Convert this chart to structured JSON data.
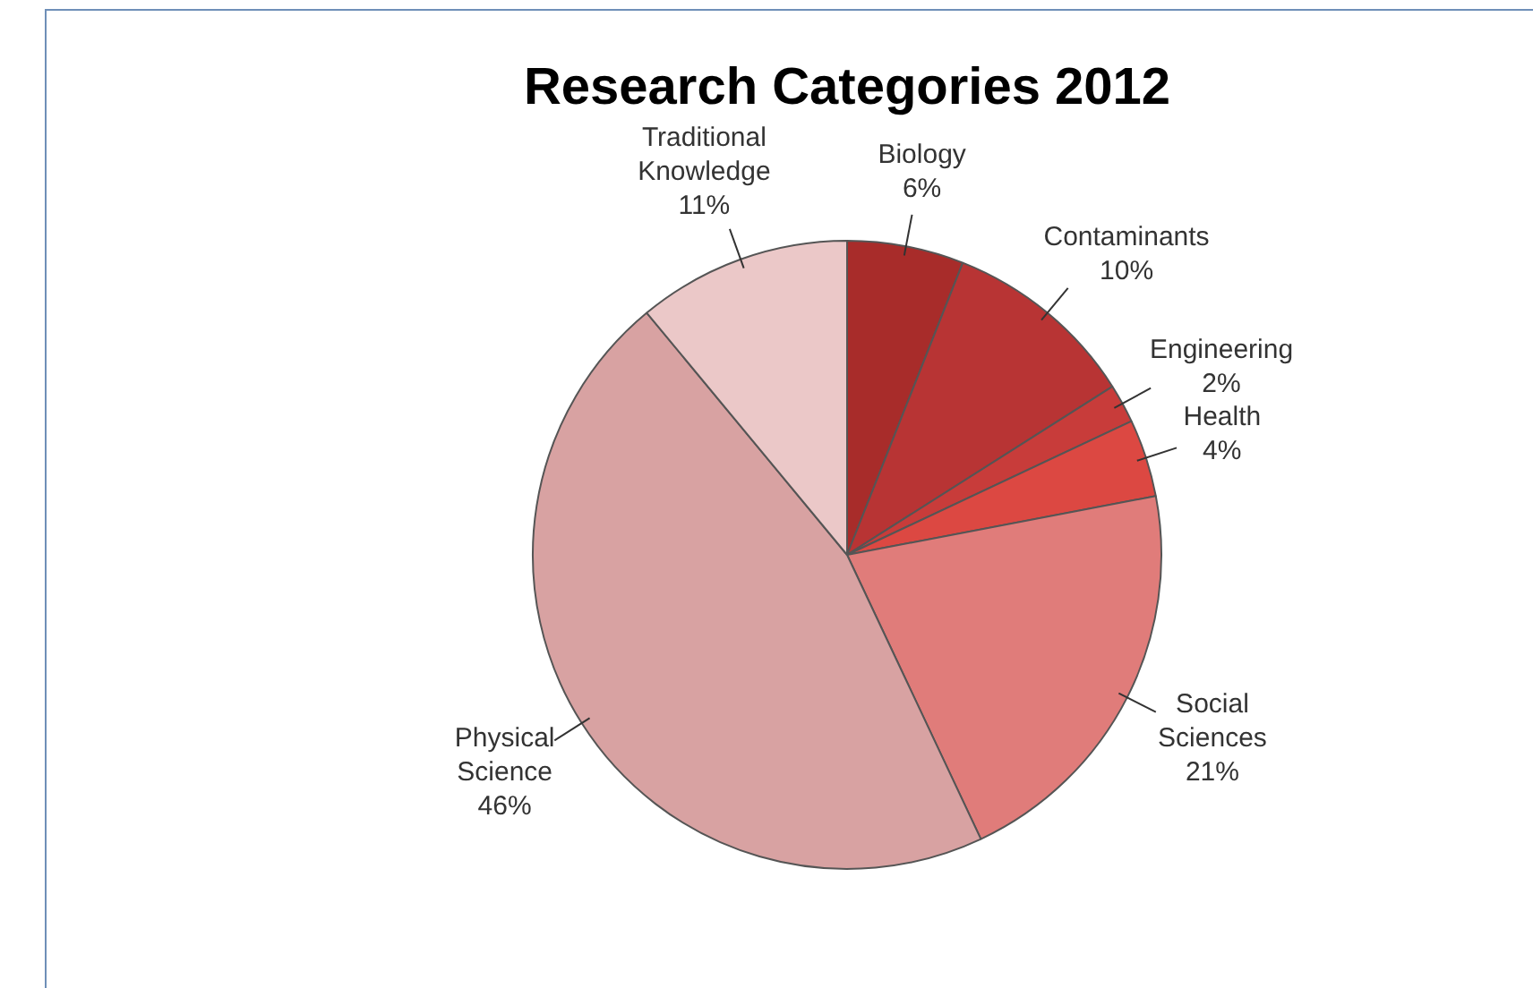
{
  "chart_data": {
    "type": "pie",
    "title": "Research Categories 2012",
    "categories": [
      "Biology",
      "Contaminants",
      "Engineering",
      "Health",
      "Social Sciences",
      "Physical Science",
      "Traditional Knowledge"
    ],
    "values": [
      6,
      10,
      2,
      4,
      21,
      46,
      11
    ],
    "value_labels": [
      "6%",
      "10%",
      "2%",
      "4%",
      "21%",
      "46%",
      "11%"
    ],
    "colors": [
      "#a82c2a",
      "#b83434",
      "#c83c3a",
      "#dc4842",
      "#e07c7a",
      "#d8a2a2",
      "#ebc8c8"
    ]
  }
}
